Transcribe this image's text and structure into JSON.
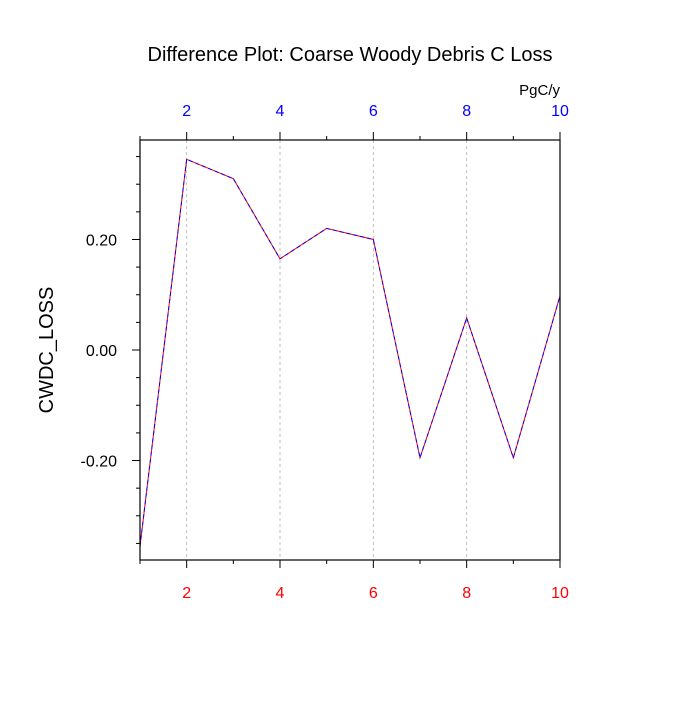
{
  "chart_data": {
    "type": "line",
    "title": "Difference Plot: Coarse Woody Debris C Loss",
    "ylabel": "CWDC_LOSS",
    "units_label": "PgC/y",
    "xlim": [
      1,
      10
    ],
    "ylim": [
      -0.38,
      0.38
    ],
    "x_ticks": [
      2,
      4,
      6,
      8,
      10
    ],
    "x_tick_labels": [
      "2",
      "4",
      "6",
      "8",
      "10"
    ],
    "y_major_ticks": [
      -0.2,
      0.0,
      0.2
    ],
    "y_tick_labels": [
      "-0.20",
      "0.00",
      "0.20"
    ],
    "y_minor_step": 0.05,
    "x_minor_step": 1,
    "vertical_grid": true,
    "grid_at": [
      2,
      4,
      6,
      8
    ],
    "series": [
      {
        "x": [
          1,
          2,
          3,
          4,
          5,
          6,
          7,
          8,
          9,
          10
        ],
        "values": [
          -0.355,
          0.345,
          0.31,
          0.165,
          0.22,
          0.2,
          -0.195,
          0.058,
          -0.195,
          0.098
        ],
        "colors": [
          "#ff0000",
          "#0000ff"
        ]
      }
    ],
    "colors": {
      "bottom_axis_labels": "#ff0000",
      "top_axis_labels": "#0000ff",
      "left_axis_labels": "#000000",
      "grid": "#b0b0b0"
    }
  }
}
